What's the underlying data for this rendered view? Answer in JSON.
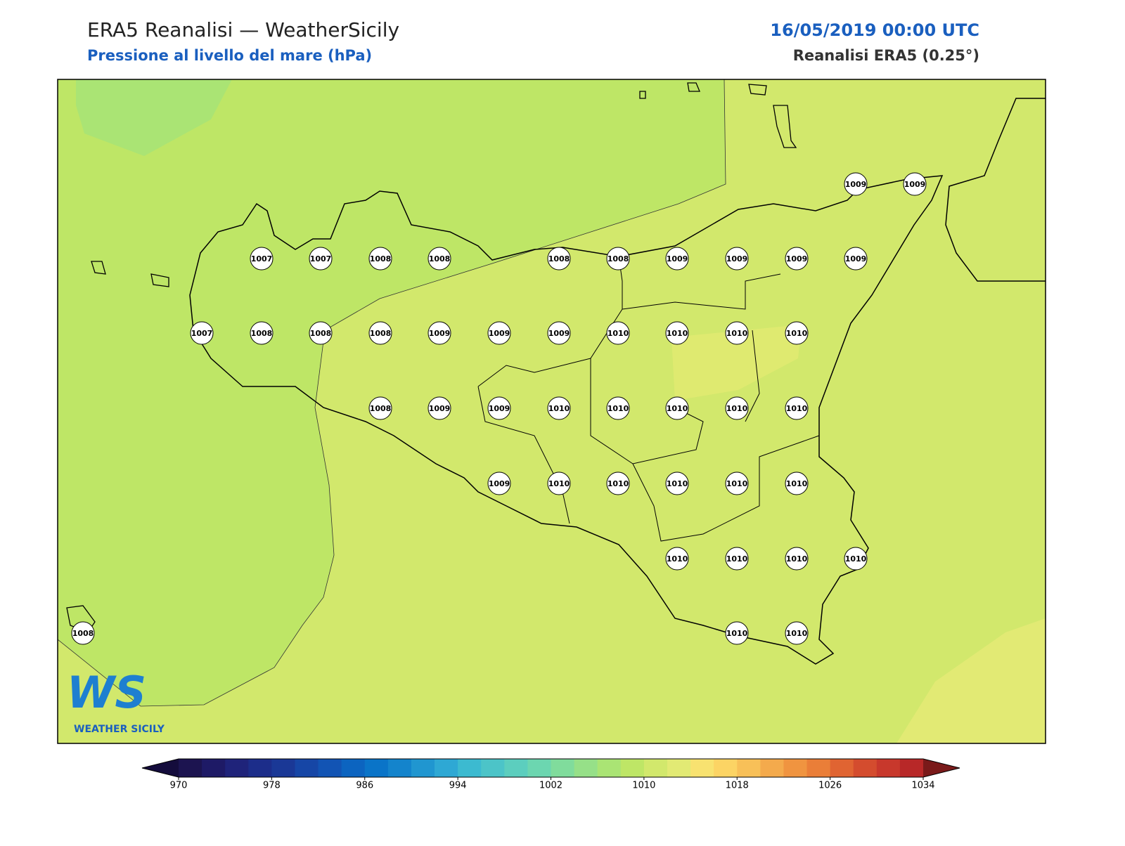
{
  "header": {
    "title": "ERA5 Reanalisi — WeatherSicily",
    "subtitle": "Pressione al livello del mare (hPa)",
    "date": "16/05/2019 00:00 UTC",
    "source": "Reanalisi ERA5 (0.25°)"
  },
  "stations": [
    1009,
    1009,
    1007,
    1007,
    1008,
    1008,
    1008,
    1008,
    1009,
    1009,
    1009,
    1009,
    1007,
    1008,
    1008,
    1008,
    1009,
    1009,
    1009,
    1010,
    1010,
    1010,
    1010,
    1008,
    1009,
    1009,
    1010,
    1010,
    1010,
    1010,
    1010,
    1009,
    1010,
    1010,
    1010,
    1010,
    1010,
    1010,
    1010,
    1010,
    1010,
    1008,
    1010,
    1010
  ],
  "colorbar": {
    "vlim": [
      970,
      1034
    ],
    "ticks": [
      970,
      978,
      986,
      994,
      1002,
      1010,
      1018,
      1026,
      1034
    ],
    "under_color": "#140c3c",
    "over_color": "#7a1a1a",
    "colors": [
      "#1c1450",
      "#1e1a66",
      "#1f237a",
      "#1c2d8a",
      "#1a3896",
      "#1646a6",
      "#1254b4",
      "#0c64c0",
      "#0a74c8",
      "#1484cc",
      "#2096d0",
      "#2ea8d4",
      "#3cbad0",
      "#4cc4c8",
      "#5ccebe",
      "#6cd6b0",
      "#80dc9c",
      "#96e088",
      "#aae474",
      "#bee666",
      "#d2e86c",
      "#e2ea74",
      "#f8e270",
      "#fcd464",
      "#f8c058",
      "#f4aa4c",
      "#f09440",
      "#ea7e38",
      "#e06432",
      "#d44c2e",
      "#c8382c",
      "#b82828"
    ]
  },
  "logo": {
    "mark": "WS",
    "text": "WEATHER SICILY"
  }
}
